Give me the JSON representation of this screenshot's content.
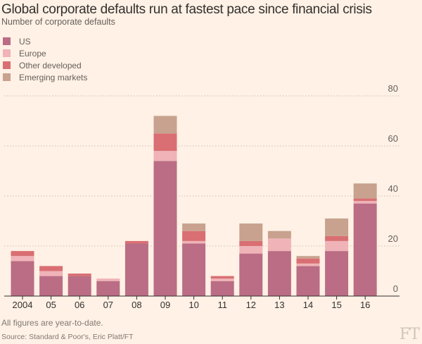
{
  "title": "Global corporate defaults run at fastest pace since financial crisis",
  "subtitle": "Number of corporate defaults",
  "note": "All figures are year-to-date.",
  "source": "Source: Standard & Poor's, Eric Platt/FT",
  "logo": "FT",
  "colors": {
    "background": "#fff1e5",
    "US": "#ba6d84",
    "Europe": "#efb3b8",
    "Other developed": "#d96f73",
    "Emerging markets": "#c8a28e",
    "grid": "#c9bfb3",
    "axis": "#33302e",
    "tick_text": "#66605c"
  },
  "chart_data": {
    "type": "bar",
    "stacked": true,
    "title": "Global corporate defaults run at fastest pace since financial crisis",
    "ylabel": "Number of corporate defaults",
    "xlabel": "",
    "ylim": [
      0,
      80
    ],
    "yticks": [
      0,
      20,
      40,
      60,
      80
    ],
    "ytick_labels": [
      "0",
      "20",
      "40",
      "60",
      "80"
    ],
    "grid": true,
    "legend_position": "top-left",
    "categories": [
      "2004",
      "05",
      "06",
      "07",
      "08",
      "09",
      "10",
      "11",
      "12",
      "13",
      "14",
      "15",
      "16"
    ],
    "series": [
      {
        "name": "US",
        "values": [
          14,
          8,
          8,
          6,
          21,
          54,
          21,
          6,
          17,
          18,
          12,
          18,
          37
        ]
      },
      {
        "name": "Europe",
        "values": [
          2,
          2,
          0,
          1,
          0,
          4,
          1,
          1,
          3,
          5,
          1,
          4,
          1
        ]
      },
      {
        "name": "Other developed",
        "values": [
          2,
          2,
          1,
          0,
          1,
          7,
          4,
          1,
          2,
          0,
          2,
          2,
          1
        ]
      },
      {
        "name": "Emerging markets",
        "values": [
          0,
          0,
          0,
          0,
          0,
          7,
          3,
          0,
          7,
          3,
          1,
          7,
          6
        ]
      }
    ]
  }
}
